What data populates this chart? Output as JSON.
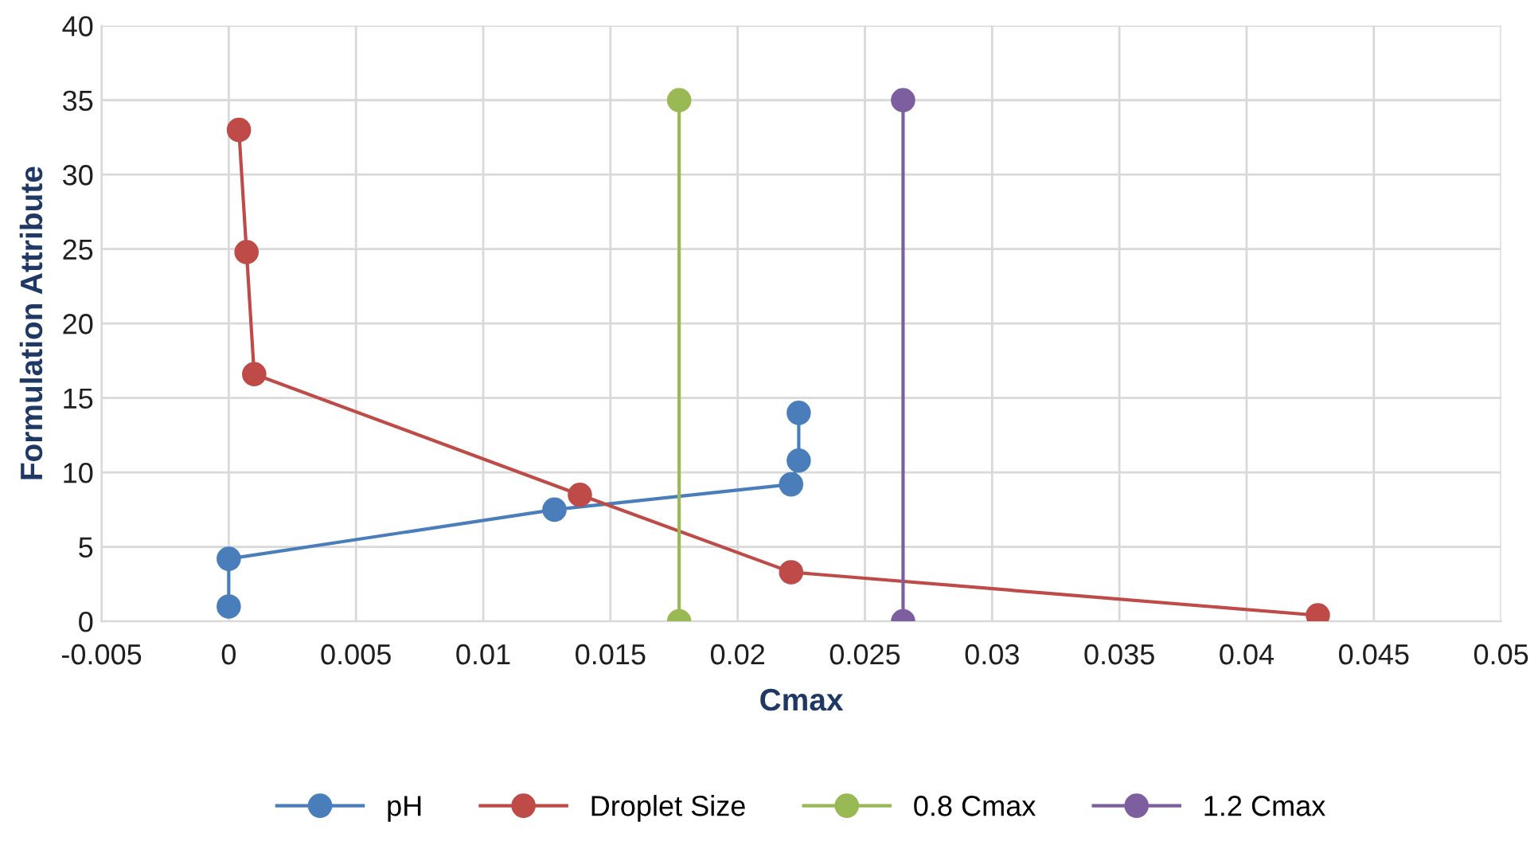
{
  "chart_data": {
    "type": "line",
    "xlabel": "Cmax",
    "ylabel": "Formulation Attribute",
    "xlim": [
      -0.005,
      0.05
    ],
    "xticks": [
      -0.005,
      0,
      0.005,
      0.01,
      0.015,
      0.02,
      0.025,
      0.03,
      0.035,
      0.04,
      0.045,
      0.05
    ],
    "ylim": [
      0,
      40
    ],
    "yticks": [
      0,
      5,
      10,
      15,
      20,
      25,
      30,
      35,
      40
    ],
    "grid": true,
    "legend": "bottom",
    "marker": "circle",
    "line_style": "solid",
    "series": [
      {
        "name": "pH",
        "color": "#4a7ebb",
        "x": [
          0,
          0,
          0.0128,
          0.0221,
          0.0224,
          0.0224
        ],
        "values": [
          1,
          4.2,
          7.5,
          9.2,
          10.8,
          14
        ]
      },
      {
        "name": "Droplet Size",
        "color": "#be4b48",
        "x": [
          0.0004,
          0.0007,
          0.001,
          0.0138,
          0.0221,
          0.0428
        ],
        "values": [
          33,
          24.8,
          16.6,
          8.5,
          3.3,
          0.4
        ]
      },
      {
        "name": "0.8 Cmax",
        "color": "#98b954",
        "x": [
          0.0177,
          0.0177
        ],
        "values": [
          0,
          35
        ]
      },
      {
        "name": "1.2 Cmax",
        "color": "#7d5fa0",
        "x": [
          0.0265,
          0.0265
        ],
        "values": [
          0,
          35
        ]
      }
    ]
  }
}
